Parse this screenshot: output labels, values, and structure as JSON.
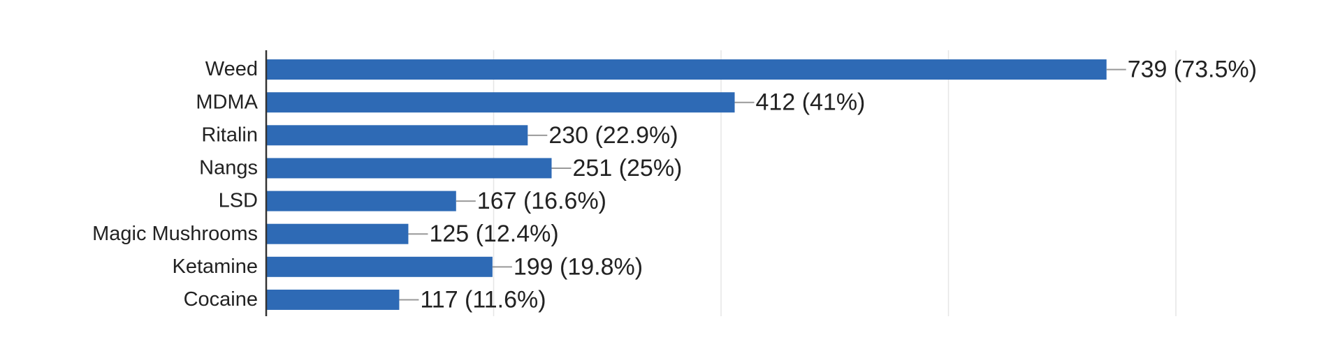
{
  "chart_data": {
    "type": "bar",
    "orientation": "horizontal",
    "categories": [
      "Weed",
      "MDMA",
      "Ritalin",
      "Nangs",
      "LSD",
      "Magic Mushrooms",
      "Ketamine",
      "Cocaine"
    ],
    "values": [
      739,
      412,
      230,
      251,
      167,
      125,
      199,
      117
    ],
    "value_labels": [
      "739 (73.5%)",
      "412 (41%)",
      "230 (22.9%)",
      "251 (25%)",
      "167 (16.6%)",
      "125 (12.4%)",
      "199 (19.8%)",
      "117 (11.6%)"
    ],
    "color": "#2e6ab5",
    "xlim": [
      0,
      800
    ],
    "xticks": [
      0,
      200,
      400,
      600,
      800
    ],
    "grid": true
  }
}
